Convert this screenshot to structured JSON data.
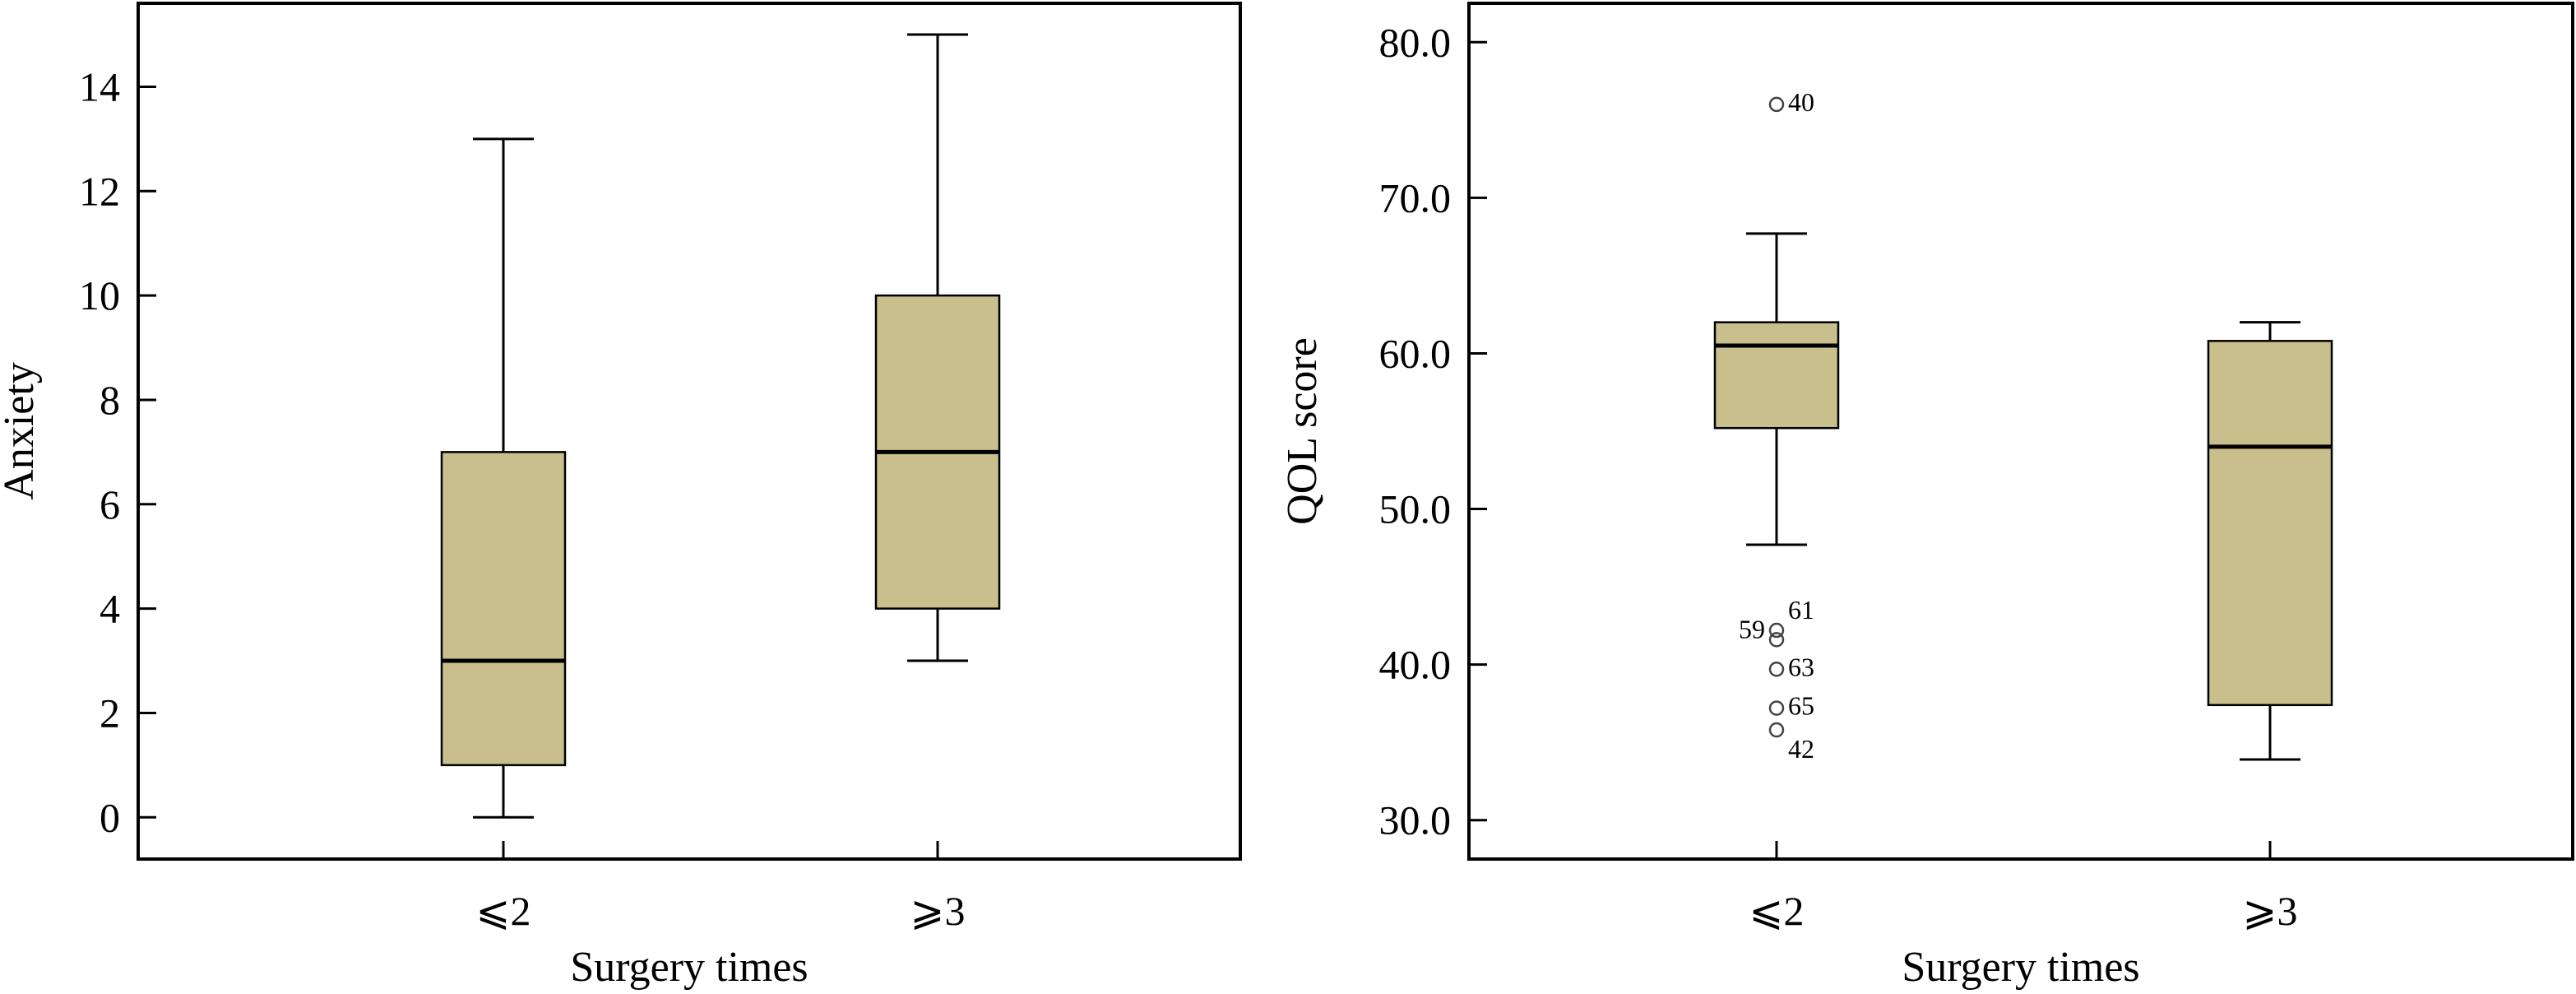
{
  "chart_data": [
    {
      "type": "box",
      "xlabel": "Surgery times",
      "ylabel": "Anxiety",
      "categories": [
        "⩽2",
        "⩾3"
      ],
      "ylim": [
        -0.8,
        15.6
      ],
      "yticks": [
        0,
        2,
        4,
        6,
        8,
        10,
        12,
        14
      ],
      "tick_decimals": 0,
      "boxes": [
        {
          "category": "⩽2",
          "min": 0,
          "q1": 1,
          "median": 3,
          "q3": 7,
          "max": 13,
          "outliers": []
        },
        {
          "category": "⩾3",
          "min": 3,
          "q1": 4,
          "median": 7,
          "q3": 10,
          "max": 15,
          "outliers": []
        }
      ],
      "grid": false,
      "colors": {
        "box_fill": "#c9bf8d",
        "outline": "#000000"
      }
    },
    {
      "type": "box",
      "xlabel": "Surgery times",
      "ylabel": "QOL score",
      "categories": [
        "⩽2",
        "⩾3"
      ],
      "ylim": [
        27.5,
        82.5
      ],
      "yticks": [
        30,
        40,
        50,
        60,
        70,
        80
      ],
      "tick_decimals": 1,
      "boxes": [
        {
          "category": "⩽2",
          "min": 47.7,
          "q1": 55.2,
          "median": 60.5,
          "q3": 62.0,
          "max": 67.7,
          "outliers": [
            {
              "value": 76.0,
              "label": "40"
            },
            {
              "value": 42.2,
              "label": "61"
            },
            {
              "value": 41.6,
              "label": "59"
            },
            {
              "value": 39.7,
              "label": "63"
            },
            {
              "value": 37.2,
              "label": "65"
            },
            {
              "value": 35.8,
              "label": "42"
            }
          ]
        },
        {
          "category": "⩾3",
          "min": 33.9,
          "q1": 37.4,
          "median": 54.0,
          "q3": 60.8,
          "max": 62.0,
          "outliers": []
        }
      ],
      "grid": false,
      "colors": {
        "box_fill": "#c9bf8d",
        "outline": "#000000"
      }
    }
  ]
}
